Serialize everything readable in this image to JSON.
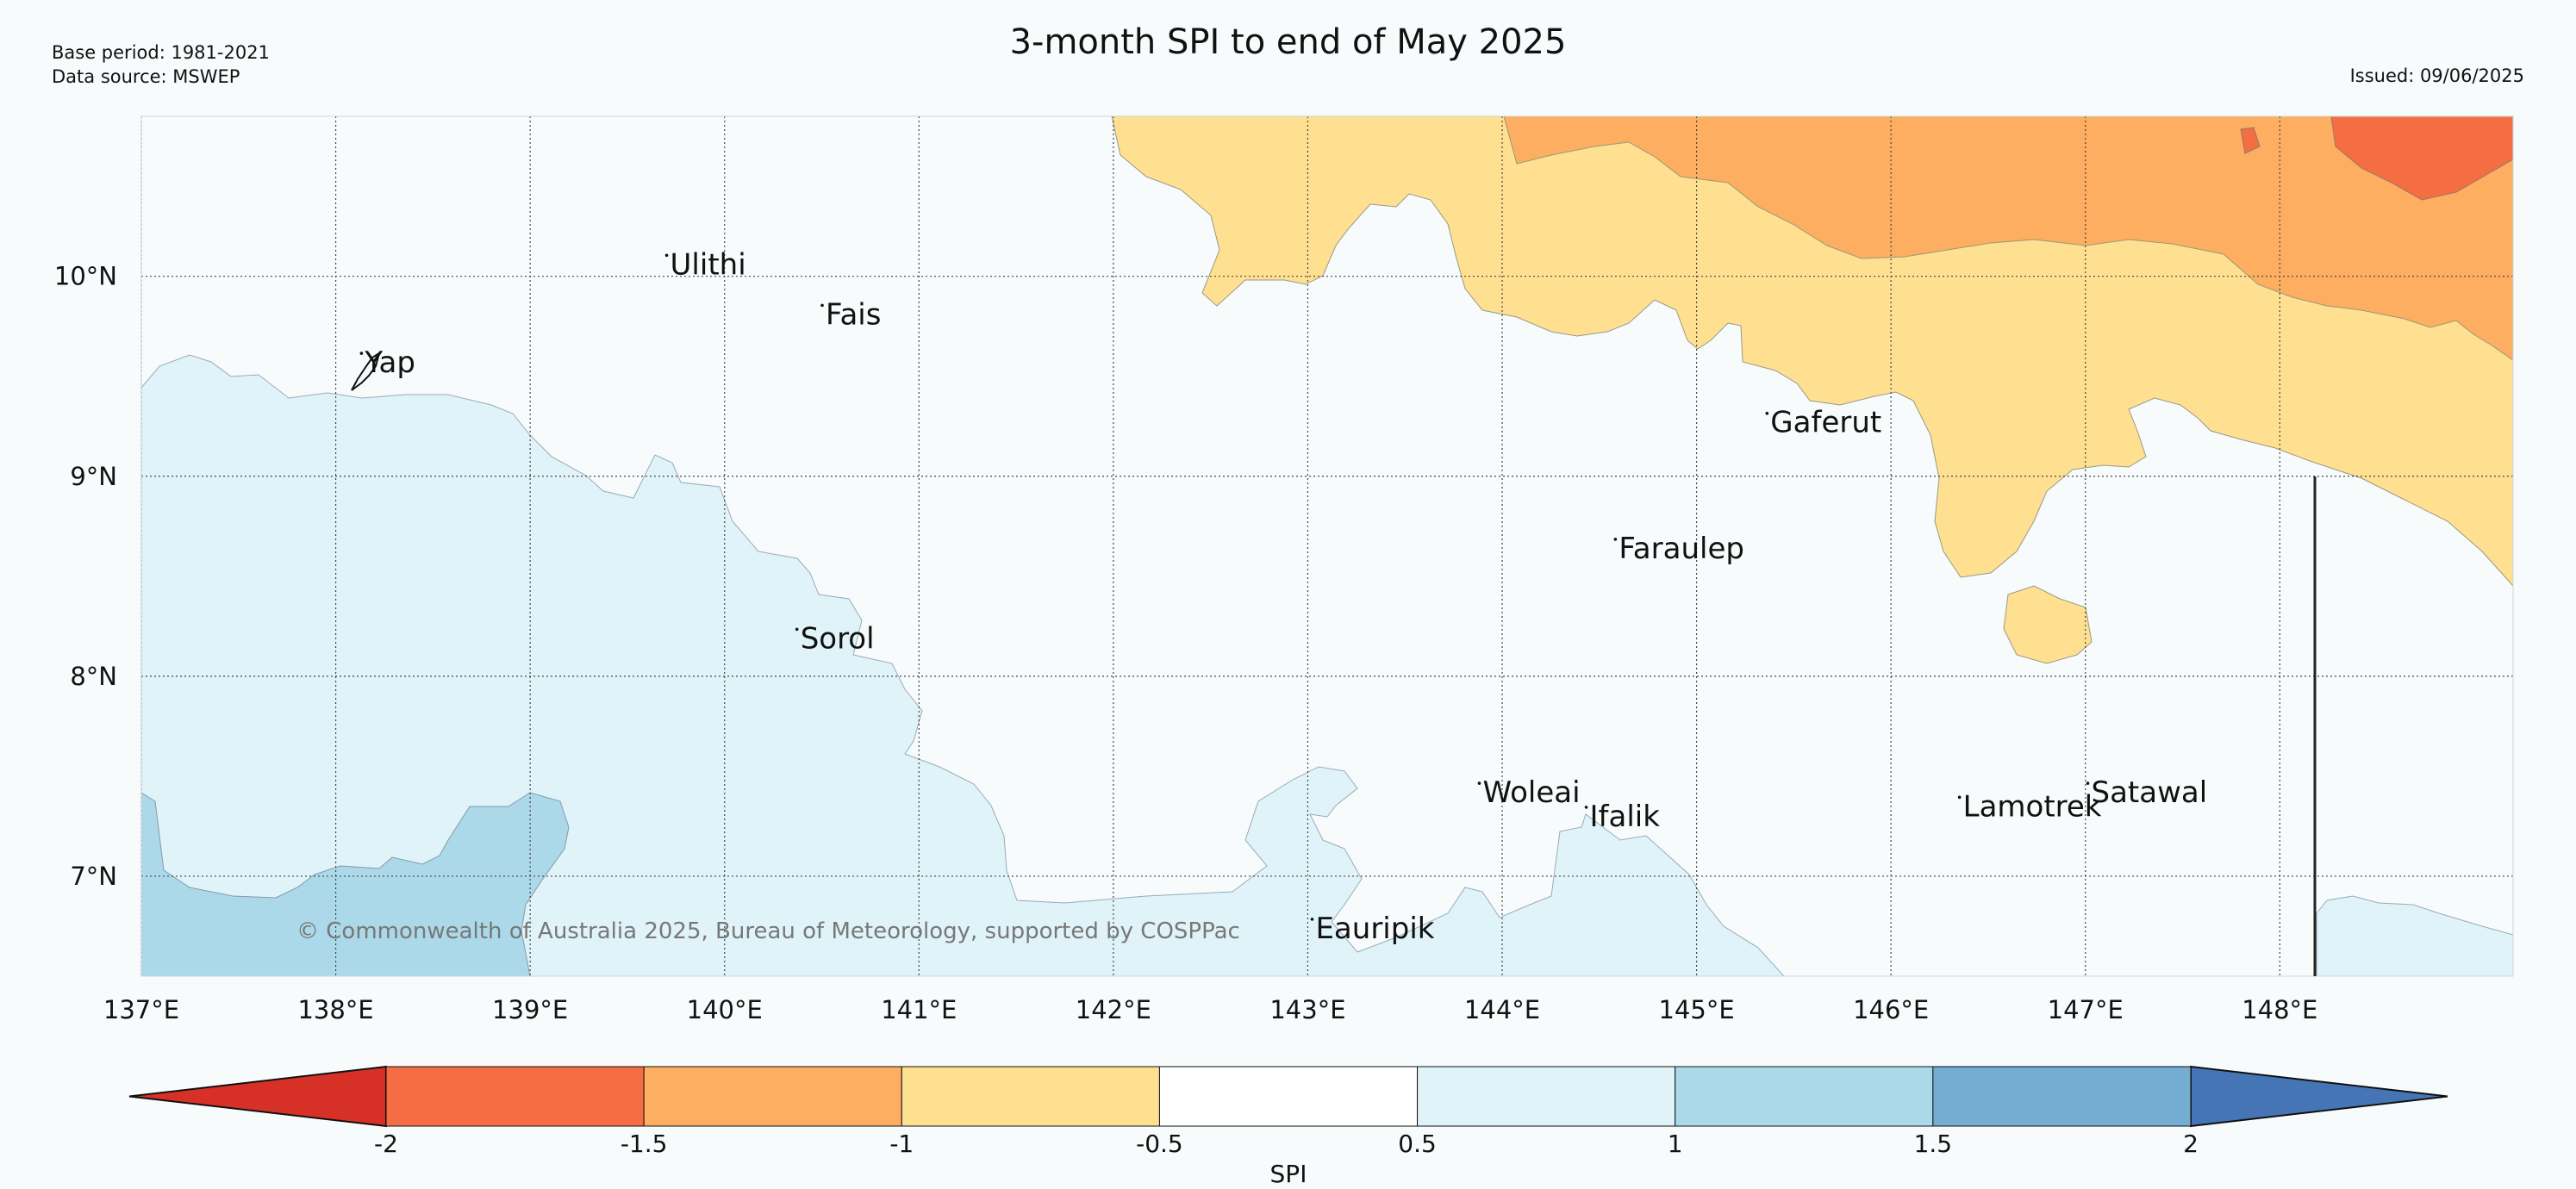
{
  "header": {
    "title": "3-month SPI to end of May 2025",
    "base_period": "Base period: 1981-2021",
    "data_source": "Data source: MSWEP",
    "issued": "Issued: 09/06/2025"
  },
  "map": {
    "extent": {
      "lon": [
        137,
        149.2
      ],
      "lat": [
        6.5,
        10.8
      ]
    },
    "lon_ticks": [
      "137°E",
      "138°E",
      "139°E",
      "140°E",
      "141°E",
      "142°E",
      "143°E",
      "144°E",
      "145°E",
      "146°E",
      "147°E",
      "148°E"
    ],
    "lat_ticks": [
      "10°N",
      "9°N",
      "8°N",
      "7°N"
    ],
    "places": [
      {
        "name": "Yap",
        "lon": 138.15,
        "lat": 9.52
      },
      {
        "name": "Ulithi",
        "lon": 139.72,
        "lat": 10.01
      },
      {
        "name": "Fais",
        "lon": 140.52,
        "lat": 9.76
      },
      {
        "name": "Gaferut",
        "lon": 145.38,
        "lat": 9.22
      },
      {
        "name": "Faraulep",
        "lon": 144.6,
        "lat": 8.59
      },
      {
        "name": "Sorol",
        "lon": 140.39,
        "lat": 8.14
      },
      {
        "name": "Woleai",
        "lon": 143.9,
        "lat": 7.37
      },
      {
        "name": "Ifalik",
        "lon": 144.45,
        "lat": 7.25
      },
      {
        "name": "Lamotrek",
        "lon": 146.37,
        "lat": 7.3
      },
      {
        "name": "Satawal",
        "lon": 147.03,
        "lat": 7.37
      },
      {
        "name": "Eauripik",
        "lon": 143.04,
        "lat": 6.69
      }
    ],
    "copyright": "© Commonwealth of Australia 2025, Bureau of Meteorology, supported by COSPPac"
  },
  "colorbar": {
    "label": "SPI",
    "ticks": [
      "-2",
      "-1.5",
      "-1",
      "-0.5",
      "0.5",
      "1",
      "1.5",
      "2"
    ],
    "colors": [
      "#d73027",
      "#f46d43",
      "#fdae61",
      "#fee090",
      "#ffffff",
      "#e0f3f8",
      "#abd9e9",
      "#74add1",
      "#4575b4"
    ]
  }
}
